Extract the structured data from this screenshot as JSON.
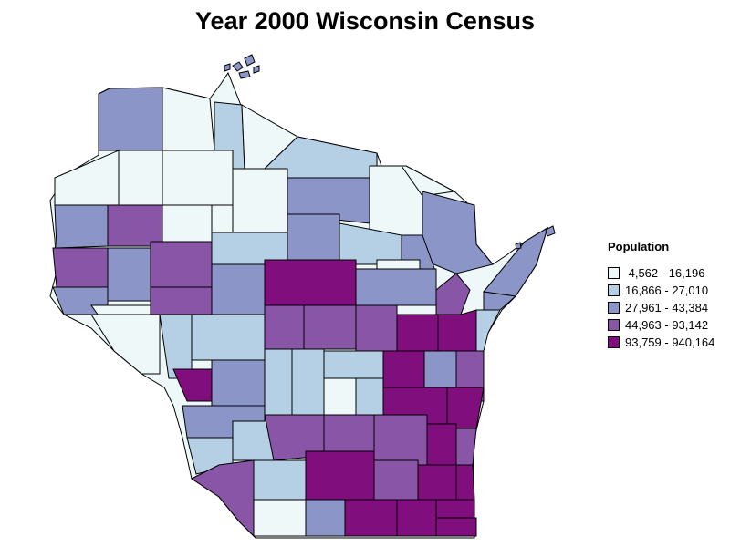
{
  "title": "Year 2000 Wisconsin Census",
  "legend": {
    "title": "Population",
    "items": [
      {
        "label": " 4,562 - 16,196",
        "color": "#eef8f8"
      },
      {
        "label": "16,866 - 27,010",
        "color": "#b5cfe4"
      },
      {
        "label": "27,961 - 43,384",
        "color": "#8c95c8"
      },
      {
        "label": "44,963 - 93,142",
        "color": "#8955a7"
      },
      {
        "label": "93,759 - 940,164",
        "color": "#800e7c"
      }
    ]
  },
  "map": {
    "state": "Wisconsin",
    "outline_color": "#000000"
  }
}
